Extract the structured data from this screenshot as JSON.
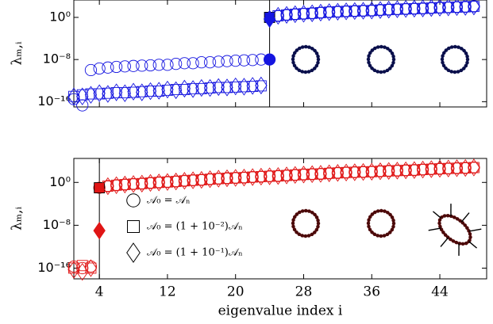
{
  "chart_data": [
    {
      "type": "scatter",
      "log_y": true,
      "ylabel": "λₘ,ᵢ",
      "color": "#1515e0",
      "vline": 24,
      "xlim": [
        1,
        49.5
      ],
      "xticks": [
        4,
        12,
        20,
        28,
        36,
        44
      ],
      "ylim": [
        1e-17,
        2000
      ],
      "yticks": [
        {
          "value": 1e-16,
          "label": "10⁻¹⁶"
        },
        {
          "value": 1e-08,
          "label": "10⁻⁸"
        },
        {
          "value": 1,
          "label": "10⁰"
        }
      ],
      "x": [
        1,
        2,
        3,
        4,
        5,
        6,
        7,
        8,
        9,
        10,
        11,
        12,
        13,
        14,
        15,
        16,
        17,
        18,
        19,
        20,
        21,
        22,
        23,
        24,
        25,
        26,
        27,
        28,
        29,
        30,
        31,
        32,
        33,
        34,
        35,
        36,
        37,
        38,
        39,
        40,
        41,
        42,
        43,
        44,
        45,
        46,
        47,
        48
      ],
      "series": [
        {
          "marker": "circle",
          "values": [
            3e-16,
            2e-17,
            1e-10,
            2e-10,
            3e-10,
            4e-10,
            5e-10,
            6e-10,
            7e-10,
            8e-10,
            1e-09,
            1e-09,
            1.5e-09,
            2e-09,
            2e-09,
            3e-09,
            3e-09,
            4e-09,
            5e-09,
            6e-09,
            7e-09,
            8e-09,
            1e-08,
            1e-08,
            2,
            3,
            4,
            5,
            6,
            8,
            10,
            12,
            14,
            16,
            18,
            20,
            25,
            30,
            35,
            40,
            45,
            50,
            60,
            70,
            80,
            90,
            100,
            120
          ]
        },
        {
          "marker": "square",
          "values": [
            1e-15,
            2e-15,
            3e-15,
            3e-15,
            4e-15,
            5e-15,
            5e-15,
            6e-15,
            8e-15,
            1e-14,
            1e-14,
            1.5e-14,
            2e-14,
            2e-14,
            3e-14,
            3e-14,
            4e-14,
            5e-14,
            5e-14,
            6e-14,
            7e-14,
            8e-14,
            1e-13,
            1,
            2,
            3,
            4,
            5,
            6,
            8,
            10,
            12,
            14,
            16,
            18,
            20,
            25,
            30,
            35,
            40,
            45,
            50,
            60,
            70,
            80,
            90,
            100,
            120
          ]
        },
        {
          "marker": "diamond",
          "values": [
            1e-15,
            1e-15,
            2e-15,
            4e-15,
            3e-15,
            6e-15,
            4e-15,
            8e-15,
            6e-15,
            1e-14,
            1.2e-14,
            2e-14,
            1.5e-14,
            3e-14,
            2.5e-14,
            4e-14,
            4e-14,
            6e-14,
            5e-14,
            8e-14,
            7e-14,
            1e-13,
            1.2e-13,
            0.5,
            2,
            3,
            4,
            5,
            6,
            8,
            10,
            12,
            14,
            16,
            18,
            20,
            25,
            30,
            35,
            40,
            45,
            50,
            60,
            70,
            80,
            90,
            100,
            120
          ]
        }
      ]
    },
    {
      "type": "scatter",
      "log_y": true,
      "ylabel": "λₘ,ᵢ",
      "xlabel": "eigenvalue index i",
      "color": "#e01515",
      "vline": 4,
      "xlim": [
        1,
        49.5
      ],
      "xticks": [
        4,
        12,
        20,
        28,
        36,
        44
      ],
      "ylim": [
        1e-18,
        30000
      ],
      "yticks": [
        {
          "value": 1e-16,
          "label": "10⁻¹⁶"
        },
        {
          "value": 1e-08,
          "label": "10⁻⁸"
        },
        {
          "value": 1,
          "label": "10⁰"
        }
      ],
      "x": [
        1,
        2,
        3,
        4,
        5,
        6,
        7,
        8,
        9,
        10,
        11,
        12,
        13,
        14,
        15,
        16,
        17,
        18,
        19,
        20,
        21,
        22,
        23,
        24,
        25,
        26,
        27,
        28,
        29,
        30,
        31,
        32,
        33,
        34,
        35,
        36,
        37,
        38,
        39,
        40,
        41,
        42,
        43,
        44,
        45,
        46,
        47,
        48
      ],
      "series": [
        {
          "name": "𝒜₀ = 𝒜ₙ",
          "marker": "circle",
          "values": [
            2e-16,
            1e-16,
            2e-16,
            0.1,
            0.2,
            0.3,
            0.4,
            0.5,
            0.6,
            0.8,
            1,
            1.2,
            1.5,
            2,
            2.5,
            3,
            4,
            5,
            6,
            7,
            8,
            10,
            12,
            14,
            16,
            20,
            25,
            30,
            35,
            40,
            50,
            60,
            70,
            80,
            90,
            100,
            120,
            140,
            160,
            180,
            200,
            250,
            300,
            350,
            400,
            450,
            500,
            600
          ]
        },
        {
          "name": "𝒜₀ = (1 + 10⁻²)𝒜ₙ",
          "marker": "square",
          "values": [
            1e-16,
            3e-16,
            1e-16,
            0.1,
            0.2,
            0.3,
            0.4,
            0.5,
            0.6,
            0.8,
            1,
            1.2,
            1.5,
            2,
            2.5,
            3,
            4,
            5,
            6,
            7,
            8,
            10,
            12,
            14,
            16,
            20,
            25,
            30,
            35,
            40,
            50,
            60,
            70,
            80,
            90,
            100,
            120,
            140,
            160,
            180,
            200,
            250,
            300,
            350,
            400,
            450,
            500,
            600
          ]
        },
        {
          "name": "𝒜₀ = (1 + 10⁻¹)𝒜ₙ",
          "marker": "diamond",
          "values": [
            5e-17,
            2e-17,
            1e-16,
            1e-09,
            0.2,
            0.3,
            0.4,
            0.5,
            0.6,
            0.8,
            1,
            1.2,
            1.5,
            2,
            2.5,
            3,
            4,
            5,
            6,
            7,
            8,
            10,
            12,
            14,
            16,
            20,
            25,
            30,
            35,
            40,
            50,
            60,
            70,
            80,
            90,
            100,
            120,
            140,
            160,
            180,
            200,
            250,
            300,
            350,
            400,
            450,
            500,
            600
          ]
        }
      ]
    }
  ]
}
